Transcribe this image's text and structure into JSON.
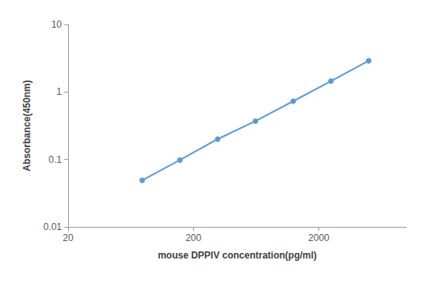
{
  "chart_data": {
    "type": "line",
    "x_label": "mouse DPPIV concentration(pg/ml)",
    "y_label": "Absorbance(450nm)",
    "x": [
      78,
      156,
      312,
      625,
      1250,
      2500,
      5000
    ],
    "values": [
      0.049,
      0.098,
      0.2,
      0.37,
      0.73,
      1.45,
      2.9
    ],
    "color": "#5b9bd5",
    "marker": "circle",
    "log": true,
    "grid": false,
    "xlim": [
      20,
      10000
    ],
    "xticks": [
      20,
      200,
      2000
    ],
    "ylim": [
      0.01,
      10
    ],
    "yticks": [
      0.01,
      0.1,
      1,
      10
    ]
  }
}
